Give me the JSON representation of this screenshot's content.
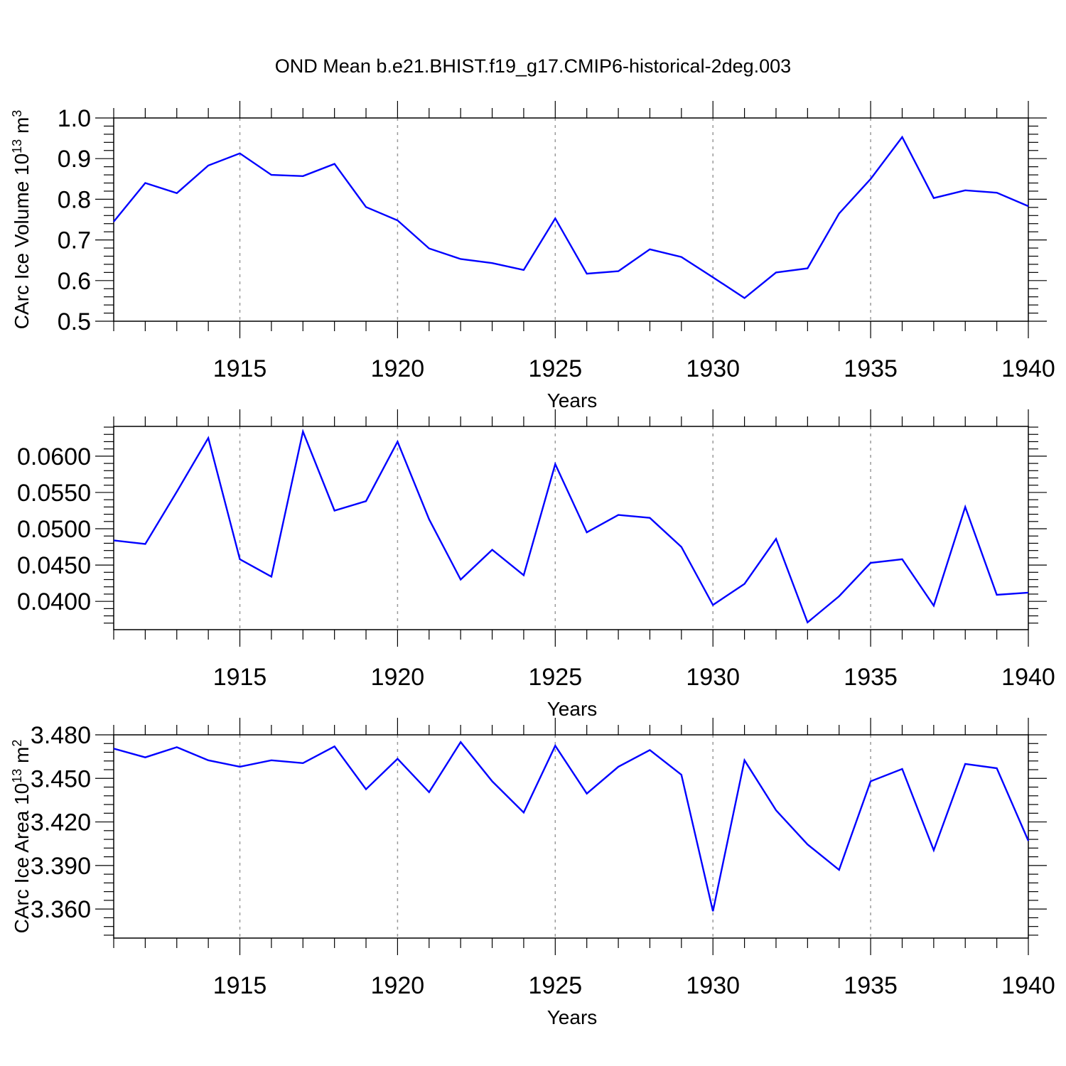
{
  "title": "OND Mean b.e21.BHIST.f19_g17.CMIP6-historical-2deg.003",
  "colors": {
    "line": "#0000ff",
    "grid": "#9a9a9a",
    "axis": "#000000"
  },
  "chart_data": [
    {
      "type": "line",
      "xlabel": "Years",
      "ylabel": "CArc Ice Volume 10",
      "ylabel_exp": "13",
      "ylabel_unit": " m",
      "ylabel_unit_exp": "3",
      "xlim": [
        1911,
        1940
      ],
      "ylim": [
        0.5,
        1.0
      ],
      "x_ticks": [
        1915,
        1920,
        1925,
        1930,
        1935,
        1940
      ],
      "y_ticks": [
        "0.5",
        "0.6",
        "0.7",
        "0.8",
        "0.9",
        "1.0"
      ],
      "grid": "vertical dashed at major x ticks",
      "x": [
        1911,
        1912,
        1913,
        1914,
        1915,
        1916,
        1917,
        1918,
        1919,
        1920,
        1921,
        1922,
        1923,
        1924,
        1925,
        1926,
        1927,
        1928,
        1929,
        1930,
        1931,
        1932,
        1933,
        1934,
        1935,
        1936,
        1937,
        1938,
        1939,
        1940
      ],
      "series": [
        {
          "values": [
            0.745,
            0.84,
            0.815,
            0.883,
            0.913,
            0.86,
            0.857,
            0.887,
            0.781,
            0.748,
            0.679,
            0.653,
            0.643,
            0.626,
            0.753,
            0.617,
            0.623,
            0.677,
            0.658,
            0.608,
            0.557,
            0.62,
            0.63,
            0.765,
            0.85,
            0.953,
            0.803,
            0.822,
            0.816,
            0.783
          ]
        }
      ]
    },
    {
      "type": "line",
      "xlabel": "Years",
      "xlim": [
        1911,
        1940
      ],
      "ylim": [
        0.0361,
        0.0641
      ],
      "x_ticks": [
        1915,
        1920,
        1925,
        1930,
        1935,
        1940
      ],
      "y_ticks": [
        "0.0400",
        "0.0450",
        "0.0500",
        "0.0550",
        "0.0600"
      ],
      "y_tick_labels": [
        "0.0400",
        "0.0450",
        "0.0500",
        "0.0550",
        "0.0600"
      ],
      "grid": "vertical dashed at major x ticks",
      "x": [
        1911,
        1912,
        1913,
        1914,
        1915,
        1916,
        1917,
        1918,
        1919,
        1920,
        1921,
        1922,
        1923,
        1924,
        1925,
        1926,
        1927,
        1928,
        1929,
        1930,
        1931,
        1932,
        1933,
        1934,
        1935,
        1936,
        1937,
        1938,
        1939,
        1940
      ],
      "series": [
        {
          "values": [
            0.0484,
            0.0479,
            0.0551,
            0.0625,
            0.0458,
            0.0434,
            0.0634,
            0.0525,
            0.0538,
            0.062,
            0.0513,
            0.043,
            0.0471,
            0.0436,
            0.0589,
            0.0495,
            0.0519,
            0.0515,
            0.0475,
            0.0395,
            0.0424,
            0.0486,
            0.0371,
            0.0407,
            0.0453,
            0.0458,
            0.0394,
            0.053,
            0.0409,
            0.0412
          ]
        }
      ]
    },
    {
      "type": "line",
      "xlabel": "Years",
      "ylabel": "CArc Ice Area 10",
      "ylabel_exp": "13",
      "ylabel_unit": " m",
      "ylabel_unit_exp": "2",
      "xlim": [
        1911,
        1940
      ],
      "ylim": [
        3.34,
        3.48
      ],
      "x_ticks": [
        1915,
        1920,
        1925,
        1930,
        1935,
        1940
      ],
      "y_ticks": [
        "3.360",
        "3.390",
        "3.420",
        "3.450",
        "3.480"
      ],
      "grid": "vertical dashed at major x ticks",
      "x": [
        1911,
        1912,
        1913,
        1914,
        1915,
        1916,
        1917,
        1918,
        1919,
        1920,
        1921,
        1922,
        1923,
        1924,
        1925,
        1926,
        1927,
        1928,
        1929,
        1930,
        1931,
        1932,
        1933,
        1934,
        1935,
        1936,
        1937,
        1938,
        1939,
        1940
      ],
      "series": [
        {
          "values": [
            3.4705,
            3.4645,
            3.4715,
            3.4625,
            3.458,
            3.4625,
            3.4605,
            3.472,
            3.4425,
            3.4635,
            3.4405,
            3.475,
            3.448,
            3.4265,
            3.4725,
            3.4395,
            3.458,
            3.4695,
            3.4525,
            3.3585,
            3.4625,
            3.428,
            3.4045,
            3.387,
            3.448,
            3.4565,
            3.4005,
            3.46,
            3.457,
            3.407
          ]
        }
      ]
    }
  ]
}
